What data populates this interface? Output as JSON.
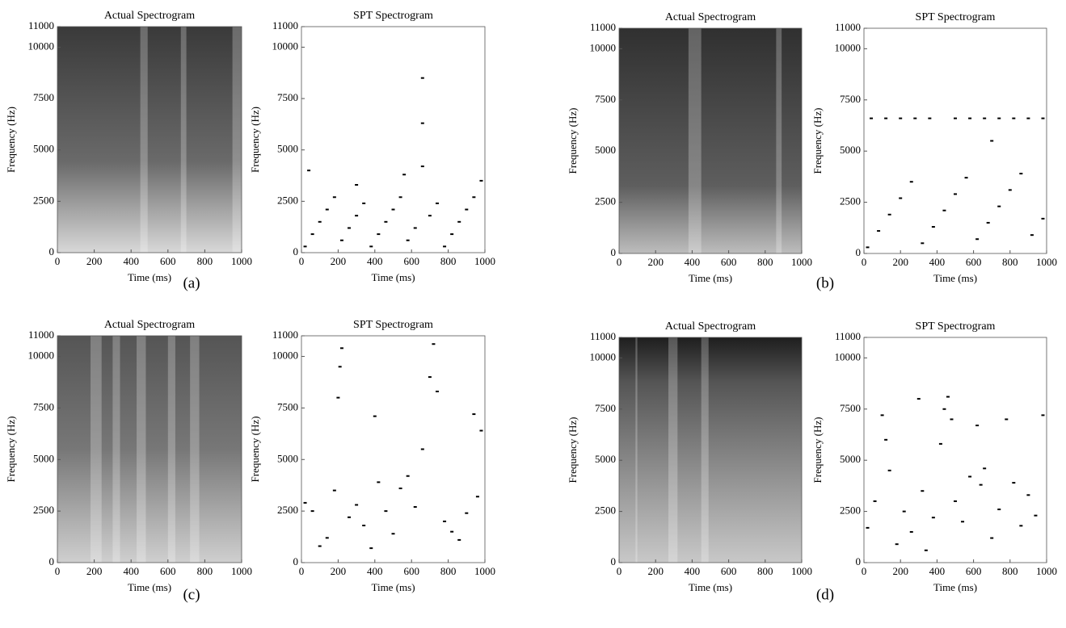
{
  "chart_data": [
    {
      "type": "spectrogram",
      "title": "Actual Spectrogram",
      "xlabel": "Time (ms)",
      "ylabel": "Frequency (Hz)",
      "xlim": [
        0,
        1000
      ],
      "ylim": [
        0,
        11000
      ],
      "xticks": [
        0,
        200,
        400,
        600,
        800,
        1000
      ],
      "yticks": [
        0,
        2500,
        5000,
        7500,
        10000,
        11000
      ]
    },
    {
      "type": "scatter",
      "title": "SPT Spectrogram",
      "xlabel": "Time (ms)",
      "ylabel": "Frequency (Hz)",
      "xlim": [
        0,
        1000
      ],
      "ylim": [
        0,
        11000
      ],
      "xticks": [
        0,
        200,
        400,
        600,
        800,
        1000
      ],
      "yticks": [
        0,
        2500,
        5000,
        7500,
        10000,
        11000
      ],
      "color": "#000000",
      "x": [
        20,
        60,
        100,
        140,
        180,
        220,
        260,
        300,
        340,
        380,
        420,
        460,
        500,
        540,
        580,
        620,
        660,
        700,
        740,
        780,
        820,
        860,
        900,
        940,
        980,
        660,
        660,
        40,
        300,
        560
      ],
      "y": [
        300,
        900,
        1500,
        2100,
        2700,
        600,
        1200,
        1800,
        2400,
        300,
        900,
        1500,
        2100,
        2700,
        600,
        1200,
        4200,
        1800,
        2400,
        300,
        900,
        1500,
        2100,
        2700,
        3500,
        8500,
        6300,
        4000,
        3300,
        3800
      ]
    },
    {
      "type": "spectrogram",
      "title": "Actual Spectrogram",
      "xlabel": "Time (ms)",
      "ylabel": "Frequency (Hz)",
      "xlim": [
        0,
        1000
      ],
      "ylim": [
        0,
        11000
      ],
      "xticks": [
        0,
        200,
        400,
        600,
        800,
        1000
      ],
      "yticks": [
        0,
        2500,
        5000,
        7500,
        10000,
        11000
      ]
    },
    {
      "type": "scatter",
      "title": "SPT Spectrogram",
      "xlabel": "Time (ms)",
      "ylabel": "Frequency (Hz)",
      "xlim": [
        0,
        1000
      ],
      "ylim": [
        0,
        11000
      ],
      "xticks": [
        0,
        200,
        400,
        600,
        800,
        1000
      ],
      "yticks": [
        0,
        2500,
        5000,
        7500,
        10000,
        11000
      ],
      "color": "#000000",
      "x": [
        40,
        120,
        200,
        280,
        360,
        500,
        580,
        660,
        740,
        820,
        900,
        980,
        20,
        80,
        140,
        200,
        260,
        320,
        380,
        440,
        500,
        560,
        620,
        680,
        740,
        800,
        860,
        920,
        980,
        700
      ],
      "y": [
        6600,
        6600,
        6600,
        6600,
        6600,
        6600,
        6600,
        6600,
        6600,
        6600,
        6600,
        6600,
        300,
        1100,
        1900,
        2700,
        3500,
        500,
        1300,
        2100,
        2900,
        3700,
        700,
        1500,
        2300,
        3100,
        3900,
        900,
        1700,
        5500
      ]
    },
    {
      "type": "spectrogram",
      "title": "Actual Spectrogram",
      "xlabel": "Time (ms)",
      "ylabel": "Frequency (Hz)",
      "xlim": [
        0,
        1000
      ],
      "ylim": [
        0,
        11000
      ],
      "xticks": [
        0,
        200,
        400,
        600,
        800,
        1000
      ],
      "yticks": [
        0,
        2500,
        5000,
        7500,
        10000,
        11000
      ]
    },
    {
      "type": "scatter",
      "title": "SPT Spectrogram",
      "xlabel": "Time (ms)",
      "ylabel": "Frequency (Hz)",
      "xlim": [
        0,
        1000
      ],
      "ylim": [
        0,
        11000
      ],
      "xticks": [
        0,
        200,
        400,
        600,
        800,
        1000
      ],
      "yticks": [
        0,
        2500,
        5000,
        7500,
        10000,
        11000
      ],
      "color": "#000000",
      "x": [
        20,
        60,
        100,
        140,
        180,
        200,
        210,
        220,
        260,
        300,
        340,
        380,
        420,
        460,
        500,
        540,
        580,
        620,
        660,
        700,
        720,
        740,
        780,
        820,
        860,
        900,
        940,
        980,
        400,
        960
      ],
      "y": [
        2900,
        2500,
        800,
        1200,
        3500,
        8000,
        9500,
        10400,
        2200,
        2800,
        1800,
        700,
        3900,
        2500,
        1400,
        3600,
        4200,
        2700,
        5500,
        9000,
        10600,
        8300,
        2000,
        1500,
        1100,
        2400,
        7200,
        6400,
        7100,
        3200
      ]
    },
    {
      "type": "spectrogram",
      "title": "Actual Spectrogram",
      "xlabel": "Time (ms)",
      "ylabel": "Frequency (Hz)",
      "xlim": [
        0,
        1000
      ],
      "ylim": [
        0,
        11000
      ],
      "xticks": [
        0,
        200,
        400,
        600,
        800,
        1000
      ],
      "yticks": [
        0,
        2500,
        5000,
        7500,
        10000,
        11000
      ]
    },
    {
      "type": "scatter",
      "title": "SPT Spectrogram",
      "xlabel": "Time (ms)",
      "ylabel": "Frequency (Hz)",
      "xlim": [
        0,
        1000
      ],
      "ylim": [
        0,
        11000
      ],
      "xticks": [
        0,
        200,
        400,
        600,
        800,
        1000
      ],
      "yticks": [
        0,
        2500,
        5000,
        7500,
        10000,
        11000
      ],
      "color": "#000000",
      "x": [
        20,
        60,
        100,
        120,
        140,
        180,
        220,
        260,
        300,
        320,
        340,
        380,
        420,
        440,
        460,
        480,
        500,
        540,
        580,
        620,
        640,
        660,
        700,
        740,
        780,
        820,
        860,
        900,
        940,
        980
      ],
      "y": [
        1700,
        3000,
        7200,
        6000,
        4500,
        900,
        2500,
        1500,
        8000,
        3500,
        600,
        2200,
        5800,
        7500,
        8100,
        7000,
        3000,
        2000,
        4200,
        6700,
        3800,
        4600,
        1200,
        2600,
        7000,
        3900,
        1800,
        3300,
        2300,
        7200
      ]
    }
  ],
  "captions": [
    "(a)",
    "(b)",
    "(c)",
    "(d)"
  ]
}
